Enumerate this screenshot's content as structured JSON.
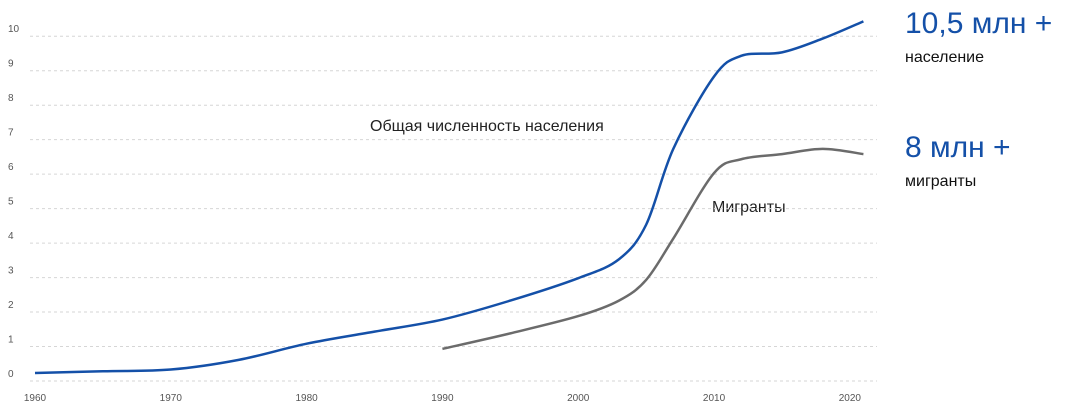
{
  "chart_data": {
    "type": "line",
    "x": [
      1960,
      1965,
      1970,
      1975,
      1980,
      1985,
      1990,
      1995,
      2000,
      2003,
      2005,
      2007,
      2010,
      2012,
      2015,
      2018,
      2021
    ],
    "series": [
      {
        "name": "Общая численность населения",
        "color": "#1450a8",
        "values": [
          0,
          0.05,
          0.1,
          0.38,
          0.85,
          1.2,
          1.55,
          2.1,
          2.75,
          3.3,
          4.3,
          6.5,
          8.6,
          9.2,
          9.3,
          9.7,
          10.2
        ]
      },
      {
        "name": "Мигранты",
        "color": "#6b6b6b",
        "values": [
          null,
          null,
          null,
          null,
          null,
          null,
          0.7,
          1.15,
          1.65,
          2.1,
          2.7,
          3.9,
          5.8,
          6.2,
          6.35,
          6.5,
          6.35
        ]
      }
    ],
    "annotations": [
      "10,5 млн +",
      "население",
      "8 млн +",
      "мигранты"
    ],
    "xlim": [
      1960,
      2022
    ],
    "xticks": [
      1960,
      1970,
      1980,
      1990,
      2000,
      2010,
      2020
    ],
    "ylim": [
      0,
      10.5
    ],
    "yticks": [
      0,
      1,
      2,
      3,
      4,
      5,
      6,
      7,
      8,
      9,
      10
    ],
    "grid": true
  }
}
